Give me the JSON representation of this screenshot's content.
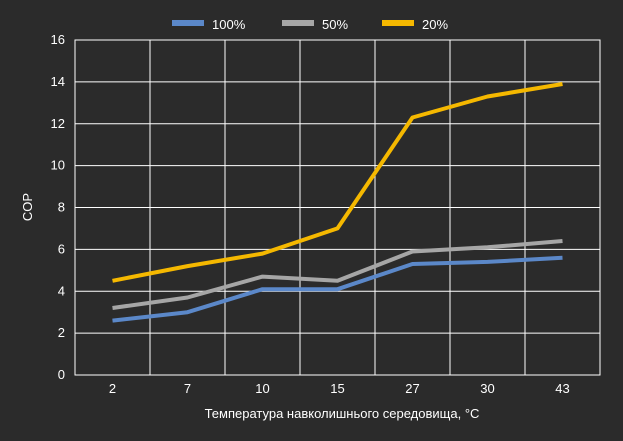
{
  "chart_data": {
    "type": "line",
    "x": [
      "2",
      "7",
      "10",
      "15",
      "27",
      "30",
      "43"
    ],
    "xlabel": "Температура навколишнього середовища, °C",
    "ylabel": "COP",
    "ylim": [
      0,
      16
    ],
    "yticks": [
      0,
      2,
      4,
      6,
      8,
      10,
      12,
      14,
      16
    ],
    "grid": true,
    "legend_position": "top-center",
    "series": [
      {
        "name": "100%",
        "color": "#5b88c9",
        "values": [
          2.6,
          3.0,
          4.1,
          4.1,
          5.3,
          5.4,
          5.6
        ]
      },
      {
        "name": "50%",
        "color": "#a6a6a6",
        "values": [
          3.2,
          3.7,
          4.7,
          4.5,
          5.9,
          6.1,
          6.4
        ]
      },
      {
        "name": "20%",
        "color": "#f5b800",
        "values": [
          4.5,
          5.2,
          5.8,
          7.0,
          12.3,
          13.3,
          13.9
        ]
      }
    ]
  }
}
